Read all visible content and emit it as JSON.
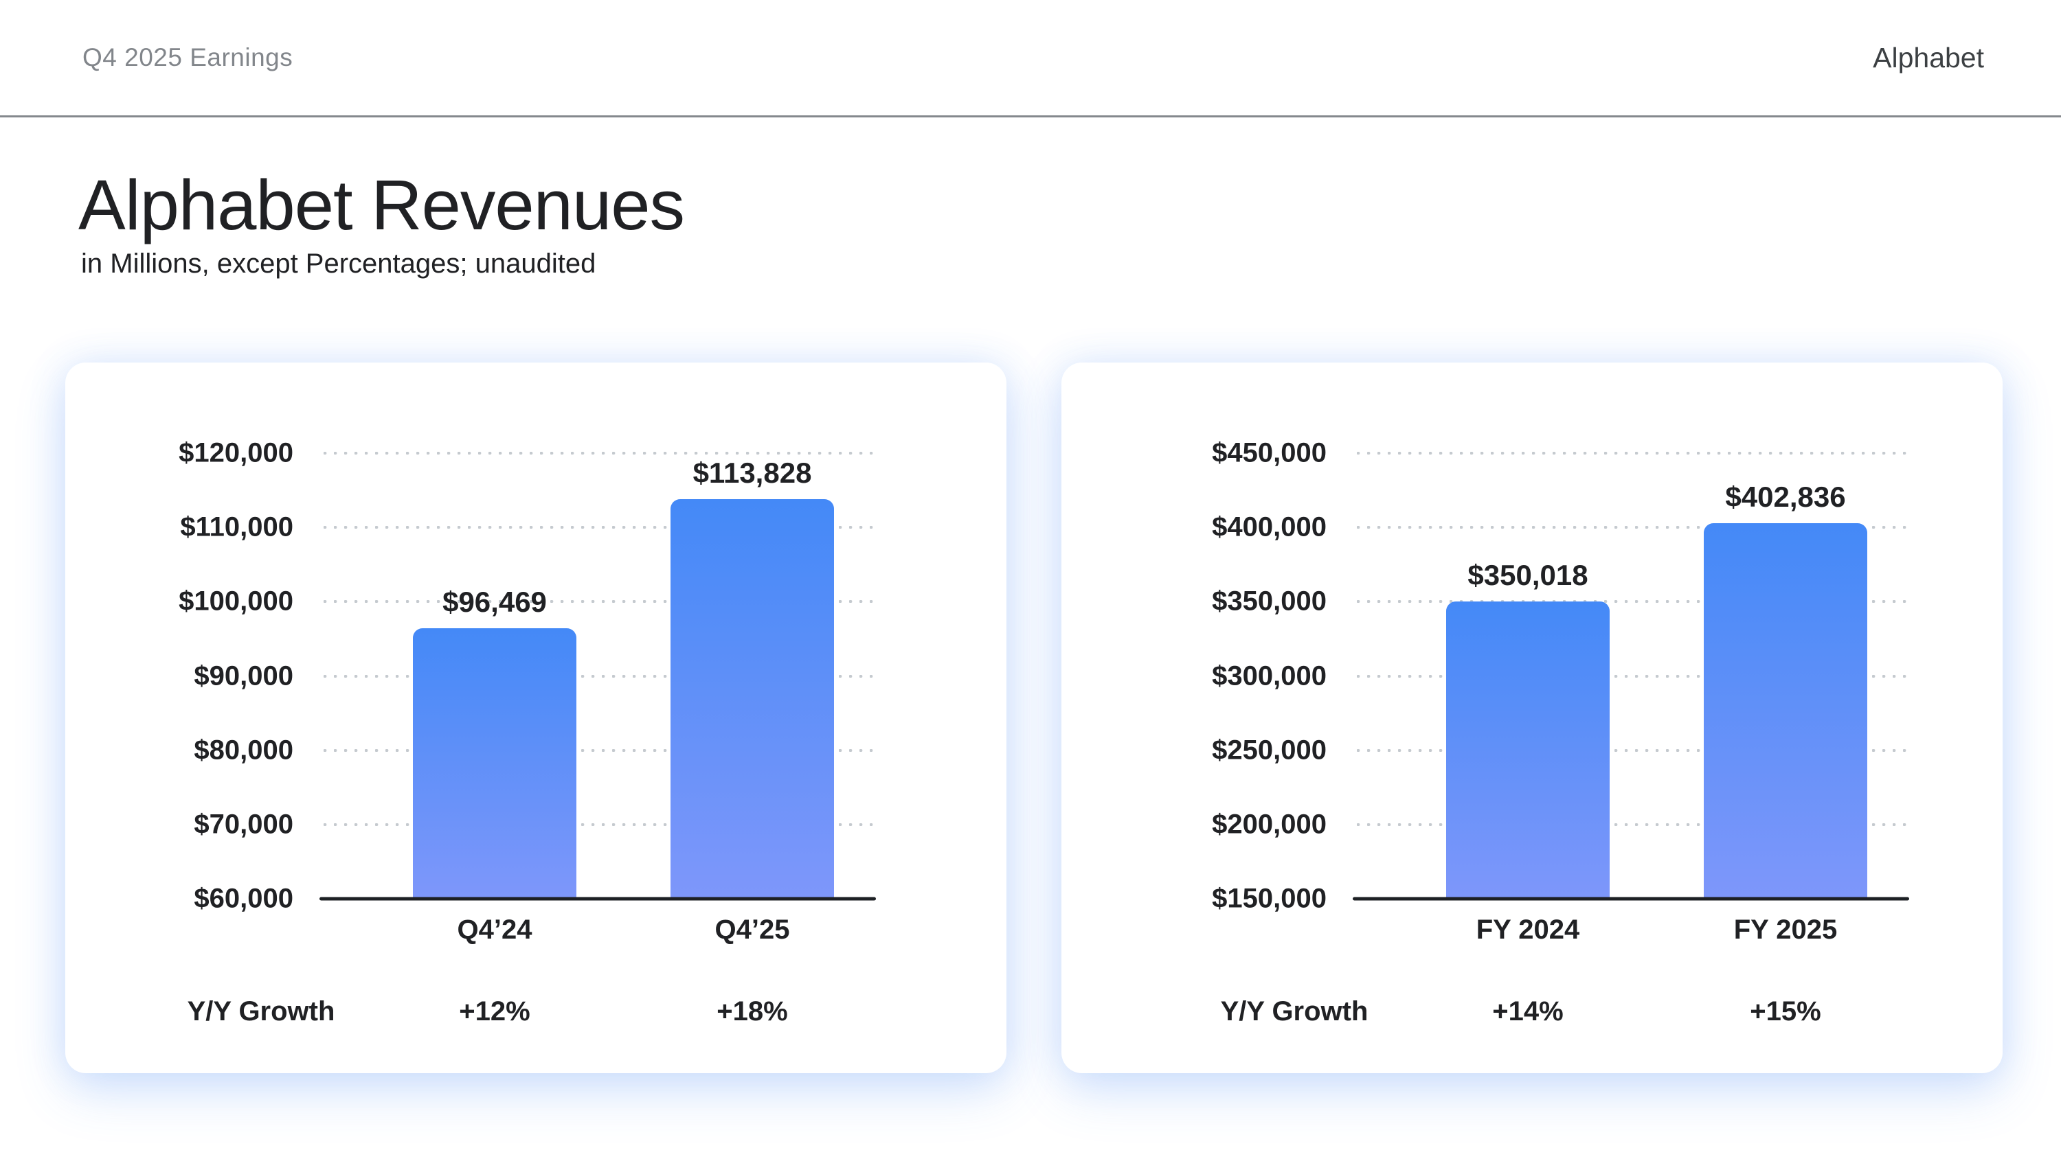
{
  "header": {
    "left_title": "Q4 2025 Earnings",
    "brand": "Alphabet"
  },
  "page": {
    "title": "Alphabet Revenues",
    "subtitle": "in Millions, except Percentages; unaudited"
  },
  "colors": {
    "bar_gradient_top": "#4489f7",
    "bar_gradient_bottom": "#7e97fa",
    "axis": "#1d2024",
    "grid_dot": "#c5cacf",
    "text_dark": "#202124",
    "header_gray": "#82868b",
    "card_glow": "rgba(66,133,244,0.18)"
  },
  "chart_data": [
    {
      "type": "bar",
      "name": "quarterly-revenues",
      "title": "",
      "categories": [
        "Q4’24",
        "Q4’25"
      ],
      "values": [
        96469,
        113828
      ],
      "value_labels": [
        "$96,469",
        "$113,828"
      ],
      "ylim": [
        60000,
        120000
      ],
      "ytick_step": 10000,
      "ytick_labels": [
        "$120,000",
        "$110,000",
        "$100,000",
        "$90,000",
        "$80,000",
        "$70,000",
        "$60,000"
      ],
      "grid": "dotted-horizontal",
      "legend": "none",
      "growth_row": {
        "label": "Y/Y Growth",
        "values": [
          "+12%",
          "+18%"
        ]
      }
    },
    {
      "type": "bar",
      "name": "fullyear-revenues",
      "title": "",
      "categories": [
        "FY 2024",
        "FY 2025"
      ],
      "values": [
        350018,
        402836
      ],
      "value_labels": [
        "$350,018",
        "$402,836"
      ],
      "ylim": [
        150000,
        450000
      ],
      "ytick_step": 50000,
      "ytick_labels": [
        "$450,000",
        "$400,000",
        "$350,000",
        "$300,000",
        "$250,000",
        "$200,000",
        "$150,000"
      ],
      "grid": "dotted-horizontal",
      "legend": "none",
      "growth_row": {
        "label": "Y/Y Growth",
        "values": [
          "+14%",
          "+15%"
        ]
      }
    }
  ]
}
